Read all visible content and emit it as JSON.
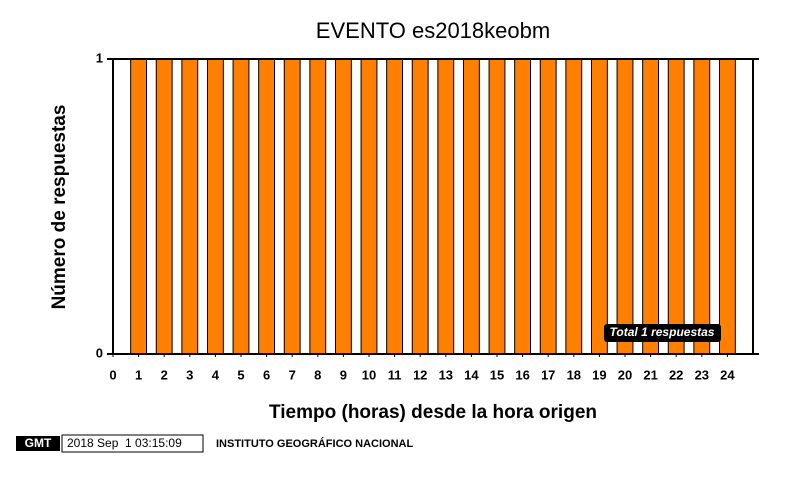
{
  "chart_data": {
    "type": "bar",
    "title": "EVENTO es2018keobm",
    "x_label": "Tiempo (horas) desde la hora origen",
    "y_label": "Número de respuestas",
    "x": [
      1,
      2,
      3,
      4,
      5,
      6,
      7,
      8,
      9,
      10,
      11,
      12,
      13,
      14,
      15,
      16,
      17,
      18,
      19,
      20,
      21,
      22,
      23,
      24
    ],
    "values": [
      1,
      1,
      1,
      1,
      1,
      1,
      1,
      1,
      1,
      1,
      1,
      1,
      1,
      1,
      1,
      1,
      1,
      1,
      1,
      1,
      1,
      1,
      1,
      1
    ],
    "color": "#ff7f00",
    "xlim": [
      0,
      25
    ],
    "xticks": [
      0,
      1,
      2,
      3,
      4,
      5,
      6,
      7,
      8,
      9,
      10,
      11,
      12,
      13,
      14,
      15,
      16,
      17,
      18,
      19,
      20,
      21,
      22,
      23,
      24
    ],
    "ylim": [
      0,
      1
    ],
    "yticks": [
      0,
      1
    ],
    "annotation": "Total 1 respuestas"
  },
  "footer": {
    "logo": "GMT",
    "timestamp": "2018 Sep  1 03:15:09",
    "institution": "INSTITUTO GEOGRÁFICO NACIONAL"
  }
}
